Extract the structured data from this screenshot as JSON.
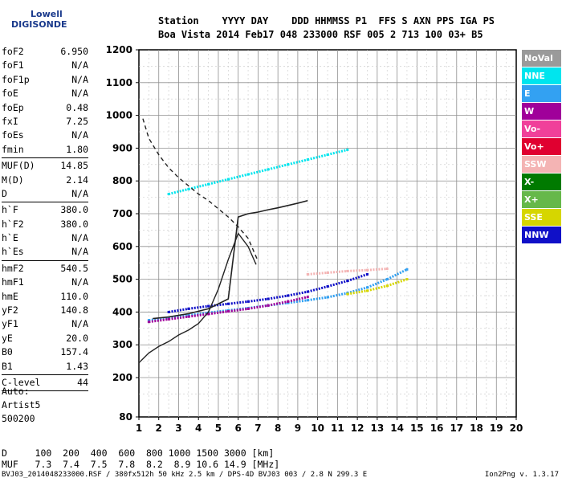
{
  "logo": {
    "line1": "Lowell",
    "line2": "DIGISONDE"
  },
  "header": {
    "line1": "Station    YYYY DAY    DDD HHMMSS P1  FFS S AXN PPS IGA PS",
    "line2": "Boa Vista 2014 Feb17 048 233000 RSF 005 2 713 100 03+ B5"
  },
  "params": [
    {
      "k": "foF2",
      "v": "6.950"
    },
    {
      "k": "foF1",
      "v": "N/A"
    },
    {
      "k": "foF1p",
      "v": "N/A"
    },
    {
      "k": "foE",
      "v": "N/A"
    },
    {
      "k": "foEp",
      "v": "0.48"
    },
    {
      "k": "fxI",
      "v": "7.25"
    },
    {
      "k": "foEs",
      "v": "N/A"
    },
    {
      "k": "fmin",
      "v": "1.80"
    },
    {
      "sep": true
    },
    {
      "k": "MUF(D)",
      "v": "14.85"
    },
    {
      "k": "M(D)",
      "v": "2.14"
    },
    {
      "k": "D",
      "v": "N/A"
    },
    {
      "sep": true
    },
    {
      "k": "h`F",
      "v": "380.0"
    },
    {
      "k": "h`F2",
      "v": "380.0"
    },
    {
      "k": "h`E",
      "v": "N/A"
    },
    {
      "k": "h`Es",
      "v": "N/A"
    },
    {
      "sep": true
    },
    {
      "k": "hmF2",
      "v": "540.5"
    },
    {
      "k": "hmF1",
      "v": "N/A"
    },
    {
      "k": "hmE",
      "v": "110.0"
    },
    {
      "k": "yF2",
      "v": "140.8"
    },
    {
      "k": "yF1",
      "v": "N/A"
    },
    {
      "k": "yE",
      "v": "20.0"
    },
    {
      "k": "B0",
      "v": "157.4"
    },
    {
      "k": "B1",
      "v": "1.43"
    },
    {
      "sep": true
    },
    {
      "k": "C-level",
      "v": "44"
    },
    {
      "sep": true
    }
  ],
  "auto": {
    "l1": "Auto:",
    "l2": "Artist5",
    "l3": "500200"
  },
  "muf_table": {
    "d_row": "D     100  200  400  600  800 1000 1500 3000 [km]",
    "muf_row": "MUF   7.3  7.4  7.5  7.8  8.2  8.9 10.6 14.9 [MHz]"
  },
  "footer": "BVJ03_2014048233000.RSF / 380fx512h 50 kHz 2.5 km / DPS-4D BVJ03 003 / 2.8 N 299.3 E",
  "version": "Ion2Png v. 1.3.17",
  "legend": [
    {
      "label": "NoVal",
      "color": "#9a9a9a"
    },
    {
      "label": "NNE",
      "color": "#00e5ee"
    },
    {
      "label": "E",
      "color": "#33a1f2"
    },
    {
      "label": "W",
      "color": "#a0009a"
    },
    {
      "label": "Vo-",
      "color": "#f0409a"
    },
    {
      "label": "Vo+",
      "color": "#e00030"
    },
    {
      "label": "SSW",
      "color": "#f4b4b4"
    },
    {
      "label": "X-",
      "color": "#007a00"
    },
    {
      "label": "X+",
      "color": "#66b84a"
    },
    {
      "label": "SSE",
      "color": "#d6d600"
    },
    {
      "label": "NNW",
      "color": "#1010c8"
    }
  ],
  "chart_data": {
    "type": "scatter",
    "xlim": [
      1,
      20
    ],
    "ylim": [
      80,
      1200
    ],
    "xticks": [
      "1",
      "2",
      "3",
      "4",
      "5",
      "6",
      "7",
      "8",
      "9",
      "10",
      "11",
      "12",
      "13",
      "14",
      "15",
      "16",
      "17",
      "18",
      "19",
      "20"
    ],
    "yticks": [
      "80",
      "200",
      "300",
      "400",
      "500",
      "600",
      "700",
      "800",
      "900",
      "1000",
      "1100",
      "1200"
    ],
    "grid": true,
    "series": [
      {
        "name": "E",
        "color": "#33a1f2",
        "x": [
          1.5,
          2.5,
          3.5,
          4.5,
          5.5,
          6.5,
          7.5,
          8.5,
          9.5,
          10.5,
          11.5,
          12.5,
          13.5,
          14.5
        ],
        "y": [
          375,
          382,
          390,
          398,
          405,
          412,
          420,
          428,
          436,
          445,
          458,
          475,
          500,
          530
        ]
      },
      {
        "name": "W",
        "color": "#a0009a",
        "x": [
          1.5,
          2.5,
          3.5,
          4.5,
          5.5,
          6.5,
          7.5,
          8.5,
          9.5
        ],
        "y": [
          370,
          378,
          386,
          394,
          402,
          410,
          420,
          432,
          446
        ]
      },
      {
        "name": "NNW",
        "color": "#1010c8",
        "x": [
          2.5,
          3.5,
          4.5,
          5.5,
          6.5,
          7.5,
          8.5,
          9.5,
          10.5,
          11.5,
          12.5
        ],
        "y": [
          400,
          410,
          418,
          425,
          432,
          440,
          450,
          462,
          478,
          495,
          515
        ]
      },
      {
        "name": "SSW",
        "color": "#f4b4b4",
        "x": [
          9.5,
          10.5,
          11.5,
          12.5,
          13.5
        ],
        "y": [
          515,
          520,
          525,
          528,
          532
        ]
      },
      {
        "name": "SSE",
        "color": "#d6d600",
        "x": [
          11.5,
          12.5,
          13.5,
          14.5
        ],
        "y": [
          455,
          465,
          480,
          500
        ]
      },
      {
        "name": "NNE",
        "color": "#00e5ee",
        "x": [
          2.5,
          3.5,
          4.5,
          5.5,
          6.5,
          7.5,
          8.5,
          9.5,
          10.5,
          11.5
        ],
        "y": [
          760,
          775,
          790,
          805,
          820,
          835,
          850,
          865,
          880,
          895
        ]
      }
    ],
    "profile": {
      "x": [
        1.0,
        1.5,
        2.0,
        2.5,
        3.0,
        3.5,
        4.0,
        4.5,
        5.0,
        5.5,
        6.0,
        6.5,
        6.9
      ],
      "y": [
        245,
        275,
        295,
        310,
        330,
        345,
        365,
        400,
        470,
        560,
        640,
        600,
        545
      ]
    },
    "muf_curve": {
      "x": [
        1.2,
        1.5,
        2.0,
        2.5,
        3.0,
        3.5,
        4.0,
        4.5,
        5.0,
        5.5,
        6.0,
        6.5,
        7.0
      ],
      "y": [
        990,
        930,
        880,
        840,
        810,
        785,
        760,
        740,
        715,
        690,
        660,
        625,
        555
      ]
    },
    "trace": {
      "x": [
        1.7,
        2.5,
        3.5,
        4.5,
        5.5,
        6.0,
        6.5,
        7.0,
        7.5,
        8.0,
        8.5,
        9.0,
        9.5
      ],
      "y": [
        380,
        385,
        395,
        410,
        440,
        690,
        700,
        705,
        712,
        718,
        725,
        732,
        740
      ]
    }
  }
}
